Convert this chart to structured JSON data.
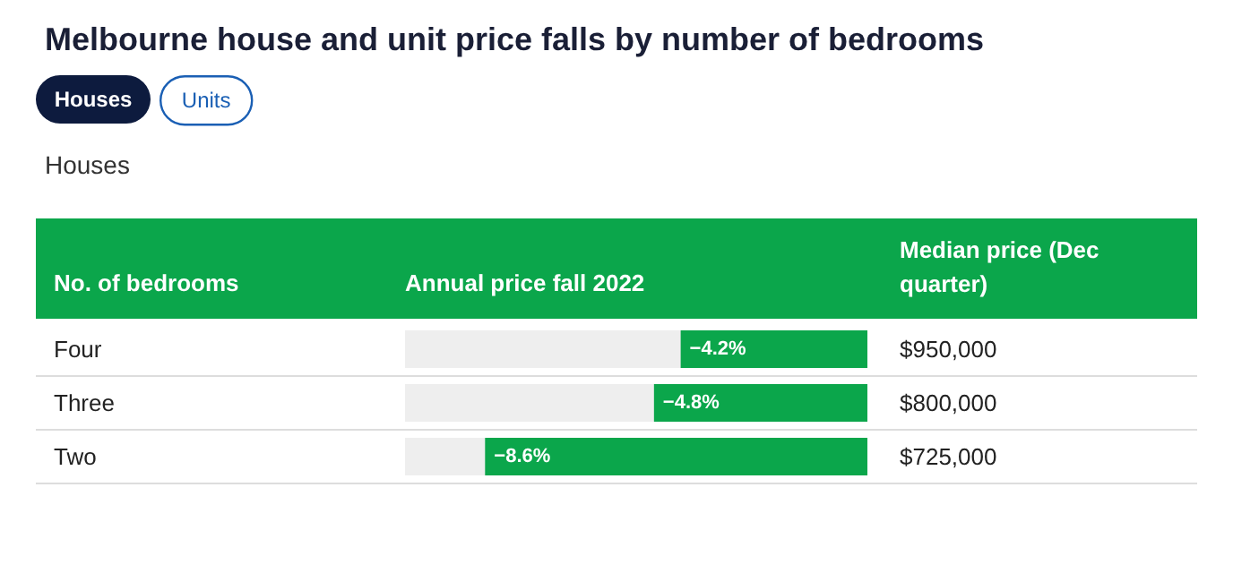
{
  "chart_data": {
    "type": "bar",
    "orientation": "horizontal",
    "title": "Melbourne house and unit price falls by number of bedrooms",
    "subtitle": "Houses",
    "ylabel": "No. of bedrooms",
    "xlabel": "Annual price fall 2022",
    "categories": [
      "Four",
      "Three",
      "Two"
    ],
    "values": [
      -4.2,
      -4.8,
      -8.6
    ],
    "value_labels": [
      "−4.2%",
      "−4.8%",
      "−8.6%"
    ],
    "color": "#0ba64b",
    "xlim": [
      -10.4,
      0
    ],
    "annotations": [
      "Houses",
      "Units",
      "Median price (Dec quarter)",
      "$950,000",
      "$800,000",
      "$725,000"
    ],
    "tick_labels": "y",
    "grid": false
  }
}
